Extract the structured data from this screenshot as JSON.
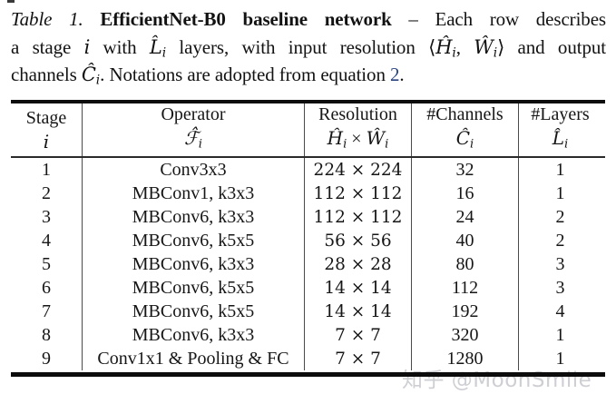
{
  "caption": {
    "lines": [
      [
        {
          "t": "Table 1.",
          "s": "it"
        },
        {
          "t": "  ",
          "s": "n"
        },
        {
          "t": "EfficientNet-B0 baseline network",
          "s": "b"
        },
        {
          "t": " – Each row describes",
          "s": "n"
        }
      ],
      [
        {
          "t": "a stage ",
          "s": "n"
        },
        {
          "t": "i",
          "s": "m"
        },
        {
          "t": " with ",
          "s": "n"
        },
        {
          "t": "L̂",
          "s": "m"
        },
        {
          "t": "i",
          "s": "sub"
        },
        {
          "t": " layers, with input resolution ",
          "s": "n"
        },
        {
          "t": "⟨",
          "s": "n"
        },
        {
          "t": "Ĥ",
          "s": "m"
        },
        {
          "t": "i",
          "s": "sub"
        },
        {
          "t": ", ",
          "s": "n"
        },
        {
          "t": "Ŵ",
          "s": "m"
        },
        {
          "t": "i",
          "s": "sub"
        },
        {
          "t": "⟩",
          "s": "n"
        },
        {
          "t": " and output",
          "s": "n"
        }
      ],
      [
        {
          "t": "channels ",
          "s": "n"
        },
        {
          "t": "Ĉ",
          "s": "m"
        },
        {
          "t": "i",
          "s": "sub"
        },
        {
          "t": ". Notations are adopted from equation ",
          "s": "n"
        },
        {
          "t": "2",
          "s": "link"
        },
        {
          "t": ".",
          "s": "n"
        }
      ]
    ]
  },
  "table": {
    "headers": [
      {
        "key": "stage",
        "label": "Stage",
        "sym": [
          {
            "t": "i",
            "s": "m"
          }
        ]
      },
      {
        "key": "operator",
        "label": "Operator",
        "sym": [
          {
            "t": "ℱ̂",
            "s": "m"
          },
          {
            "t": "i",
            "s": "sub"
          }
        ]
      },
      {
        "key": "resolution",
        "label": "Resolution",
        "sym": [
          {
            "t": "Ĥ",
            "s": "m"
          },
          {
            "t": "i",
            "s": "sub"
          },
          {
            "t": " × ",
            "s": "n"
          },
          {
            "t": "Ŵ",
            "s": "m"
          },
          {
            "t": "i",
            "s": "sub"
          }
        ]
      },
      {
        "key": "channels",
        "label": "#Channels",
        "sym": [
          {
            "t": "Ĉ",
            "s": "m"
          },
          {
            "t": "i",
            "s": "sub"
          }
        ]
      },
      {
        "key": "layers",
        "label": "#Layers",
        "sym": [
          {
            "t": "L̂",
            "s": "m"
          },
          {
            "t": "i",
            "s": "sub"
          }
        ]
      }
    ],
    "rows": [
      {
        "stage": "1",
        "operator": "Conv3x3",
        "resolution": "224 × 224",
        "channels": "32",
        "layers": "1"
      },
      {
        "stage": "2",
        "operator": "MBConv1, k3x3",
        "resolution": "112 × 112",
        "channels": "16",
        "layers": "1"
      },
      {
        "stage": "3",
        "operator": "MBConv6, k3x3",
        "resolution": "112 × 112",
        "channels": "24",
        "layers": "2"
      },
      {
        "stage": "4",
        "operator": "MBConv6, k5x5",
        "resolution": "56 × 56",
        "channels": "40",
        "layers": "2"
      },
      {
        "stage": "5",
        "operator": "MBConv6, k3x3",
        "resolution": "28 × 28",
        "channels": "80",
        "layers": "3"
      },
      {
        "stage": "6",
        "operator": "MBConv6, k5x5",
        "resolution": "14 × 14",
        "channels": "112",
        "layers": "3"
      },
      {
        "stage": "7",
        "operator": "MBConv6, k5x5",
        "resolution": "14 × 14",
        "channels": "192",
        "layers": "4"
      },
      {
        "stage": "8",
        "operator": "MBConv6, k3x3",
        "resolution": "7 × 7",
        "channels": "320",
        "layers": "1"
      },
      {
        "stage": "9",
        "operator": "Conv1x1 & Pooling & FC",
        "resolution": "7 × 7",
        "channels": "1280",
        "layers": "1"
      }
    ]
  },
  "watermark": {
    "prefix": "知乎",
    "handle": " @MoonSmile"
  },
  "colors": {
    "link": "#2a4480",
    "text": "#141414",
    "rule": "#0d0d0d",
    "watermark": "#c6c7cc"
  }
}
